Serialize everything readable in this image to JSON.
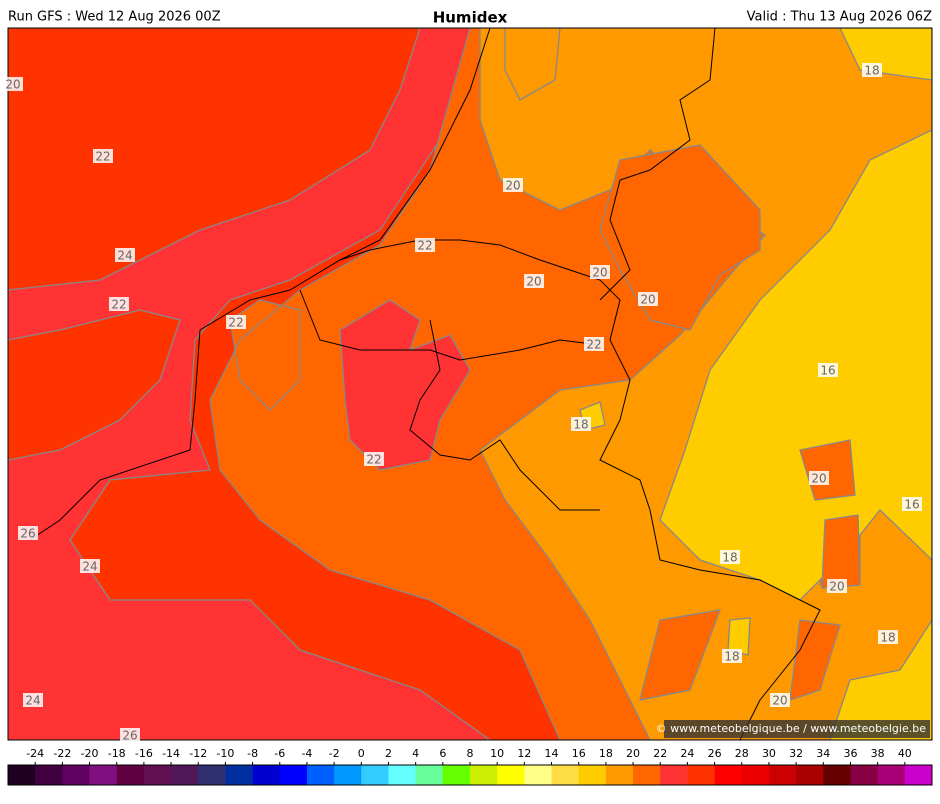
{
  "header": {
    "run": "Run GFS : Wed 12 Aug 2026 00Z",
    "title": "Humidex",
    "valid": "Valid : Thu 13 Aug 2026 06Z"
  },
  "map": {
    "contour_labels": [
      20,
      22,
      24,
      22,
      22,
      22,
      20,
      20,
      20,
      20,
      22,
      18,
      16,
      18,
      22,
      20,
      16,
      26,
      24,
      18,
      20,
      18,
      18,
      20,
      24,
      26
    ],
    "copyright": "© www.meteobelgique.be / www.meteobelgie.be"
  },
  "colorbar": {
    "ticks": [
      -24,
      -22,
      -20,
      -18,
      -16,
      -14,
      -12,
      -10,
      -8,
      -6,
      -4,
      -2,
      0,
      2,
      4,
      6,
      8,
      10,
      12,
      14,
      16,
      18,
      20,
      22,
      24,
      26,
      28,
      30,
      32,
      34,
      36,
      38,
      40
    ],
    "colors": [
      "#200020",
      "#400040",
      "#600060",
      "#801080",
      "#600040",
      "#601050",
      "#501858",
      "#303070",
      "#0030a0",
      "#0000d0",
      "#0000ff",
      "#0060ff",
      "#0099ff",
      "#33ccff",
      "#66ffff",
      "#66ff99",
      "#66ff00",
      "#ccee00",
      "#ffff00",
      "#ffff88",
      "#ffdd44",
      "#ffcc00",
      "#ff9900",
      "#ff6600",
      "#ff3333",
      "#ff3300",
      "#ff0000",
      "#ee0000",
      "#cc0000",
      "#aa0000",
      "#660000",
      "#880044",
      "#aa0077",
      "#cc00cc"
    ]
  }
}
